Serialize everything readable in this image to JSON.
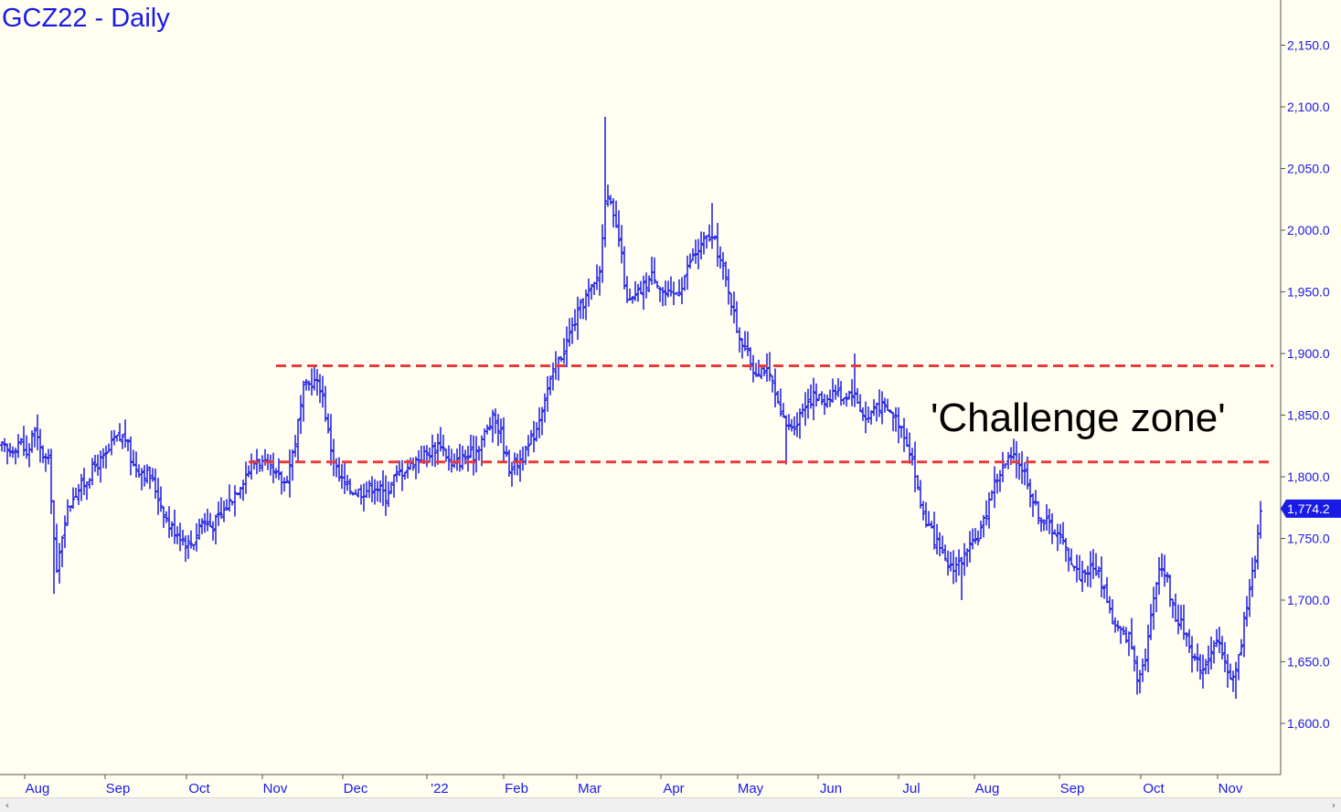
{
  "chart_data": {
    "type": "ohlc",
    "title": "GCZ22 - Daily",
    "ylim": [
      1550,
      2190
    ],
    "y_ticks": [
      1600,
      1650,
      1700,
      1750,
      1800,
      1850,
      1900,
      1950,
      2000,
      2050,
      2100,
      2150
    ],
    "y_tick_labels": [
      "1,600.0",
      "1,650.0",
      "1,700.0",
      "1,750.0",
      "1,800.0",
      "1,850.0",
      "1,900.0",
      "1,950.0",
      "2,000.0",
      "2,050.0",
      "2,100.0",
      "2,150.0"
    ],
    "x_labels": [
      "Aug",
      "Sep",
      "Oct",
      "Nov",
      "Dec",
      "'22",
      "Feb",
      "Mar",
      "Apr",
      "May",
      "Jun",
      "Jul",
      "Aug",
      "Sep",
      "Oct",
      "Nov"
    ],
    "last_price": 1774.2,
    "last_price_label": "1,774.2",
    "price_path": [
      [
        0,
        1825
      ],
      [
        10,
        1820
      ],
      [
        22,
        1830
      ],
      [
        30,
        1815
      ],
      [
        36,
        1840
      ],
      [
        45,
        1820
      ],
      [
        54,
        1810
      ],
      [
        58,
        1760
      ],
      [
        62,
        1720
      ],
      [
        70,
        1765
      ],
      [
        80,
        1785
      ],
      [
        92,
        1795
      ],
      [
        105,
        1810
      ],
      [
        115,
        1815
      ],
      [
        125,
        1830
      ],
      [
        137,
        1832
      ],
      [
        145,
        1810
      ],
      [
        155,
        1805
      ],
      [
        165,
        1800
      ],
      [
        175,
        1780
      ],
      [
        185,
        1760
      ],
      [
        195,
        1755
      ],
      [
        205,
        1745
      ],
      [
        212,
        1748
      ],
      [
        220,
        1765
      ],
      [
        232,
        1760
      ],
      [
        243,
        1770
      ],
      [
        255,
        1785
      ],
      [
        267,
        1800
      ],
      [
        280,
        1815
      ],
      [
        292,
        1808
      ],
      [
        302,
        1800
      ],
      [
        312,
        1795
      ],
      [
        322,
        1825
      ],
      [
        332,
        1870
      ],
      [
        342,
        1878
      ],
      [
        352,
        1872
      ],
      [
        360,
        1830
      ],
      [
        370,
        1800
      ],
      [
        382,
        1790
      ],
      [
        395,
        1788
      ],
      [
        410,
        1793
      ],
      [
        422,
        1785
      ],
      [
        432,
        1800
      ],
      [
        445,
        1808
      ],
      [
        457,
        1815
      ],
      [
        470,
        1820
      ],
      [
        482,
        1828
      ],
      [
        494,
        1808
      ],
      [
        506,
        1815
      ],
      [
        518,
        1818
      ],
      [
        528,
        1832
      ],
      [
        540,
        1848
      ],
      [
        548,
        1835
      ],
      [
        556,
        1808
      ],
      [
        566,
        1812
      ],
      [
        576,
        1820
      ],
      [
        586,
        1838
      ],
      [
        596,
        1865
      ],
      [
        606,
        1885
      ],
      [
        616,
        1902
      ],
      [
        628,
        1925
      ],
      [
        640,
        1945
      ],
      [
        650,
        1955
      ],
      [
        657,
        1970
      ],
      [
        663,
        2040
      ],
      [
        670,
        2010
      ],
      [
        678,
        1990
      ],
      [
        686,
        1940
      ],
      [
        695,
        1945
      ],
      [
        705,
        1955
      ],
      [
        715,
        1965
      ],
      [
        725,
        1950
      ],
      [
        735,
        1945
      ],
      [
        745,
        1955
      ],
      [
        755,
        1975
      ],
      [
        765,
        1985
      ],
      [
        775,
        1995
      ],
      [
        782,
        1990
      ],
      [
        790,
        1970
      ],
      [
        798,
        1950
      ],
      [
        806,
        1920
      ],
      [
        815,
        1905
      ],
      [
        825,
        1885
      ],
      [
        835,
        1890
      ],
      [
        845,
        1875
      ],
      [
        853,
        1850
      ],
      [
        862,
        1840
      ],
      [
        872,
        1845
      ],
      [
        880,
        1860
      ],
      [
        890,
        1865
      ],
      [
        902,
        1862
      ],
      [
        912,
        1870
      ],
      [
        922,
        1865
      ],
      [
        932,
        1870
      ],
      [
        940,
        1858
      ],
      [
        948,
        1845
      ],
      [
        958,
        1860
      ],
      [
        968,
        1855
      ],
      [
        978,
        1850
      ],
      [
        988,
        1838
      ],
      [
        998,
        1815
      ],
      [
        1006,
        1780
      ],
      [
        1015,
        1760
      ],
      [
        1025,
        1745
      ],
      [
        1035,
        1728
      ],
      [
        1045,
        1728
      ],
      [
        1055,
        1735
      ],
      [
        1065,
        1745
      ],
      [
        1075,
        1760
      ],
      [
        1085,
        1790
      ],
      [
        1095,
        1805
      ],
      [
        1105,
        1815
      ],
      [
        1115,
        1812
      ],
      [
        1123,
        1800
      ],
      [
        1130,
        1780
      ],
      [
        1140,
        1765
      ],
      [
        1150,
        1760
      ],
      [
        1160,
        1750
      ],
      [
        1170,
        1735
      ],
      [
        1180,
        1720
      ],
      [
        1190,
        1725
      ],
      [
        1200,
        1725
      ],
      [
        1210,
        1705
      ],
      [
        1218,
        1680
      ],
      [
        1228,
        1672
      ],
      [
        1236,
        1670
      ],
      [
        1244,
        1640
      ],
      [
        1252,
        1650
      ],
      [
        1260,
        1690
      ],
      [
        1268,
        1730
      ],
      [
        1276,
        1720
      ],
      [
        1284,
        1690
      ],
      [
        1292,
        1680
      ],
      [
        1300,
        1668
      ],
      [
        1308,
        1650
      ],
      [
        1316,
        1645
      ],
      [
        1324,
        1660
      ],
      [
        1332,
        1665
      ],
      [
        1340,
        1648
      ],
      [
        1350,
        1635
      ],
      [
        1358,
        1665
      ],
      [
        1366,
        1710
      ],
      [
        1373,
        1730
      ],
      [
        1379,
        1770
      ]
    ],
    "spikes": [
      [
        58,
        1705
      ],
      [
        663,
        2092
      ],
      [
        935,
        1900
      ],
      [
        1052,
        1700
      ],
      [
        1352,
        1620
      ],
      [
        860,
        1810
      ],
      [
        778,
        2022
      ]
    ],
    "reference_lines": [
      {
        "from_x": 302,
        "y": 1890
      },
      {
        "from_x": 272,
        "y": 1812
      }
    ],
    "annotation": "'Challenge zone'",
    "colors": {
      "background": "#fffef0",
      "price": "#1a1ae6",
      "reference_line": "#e83c3c",
      "text": "#1a1ae6",
      "annotation": "#000000"
    }
  }
}
